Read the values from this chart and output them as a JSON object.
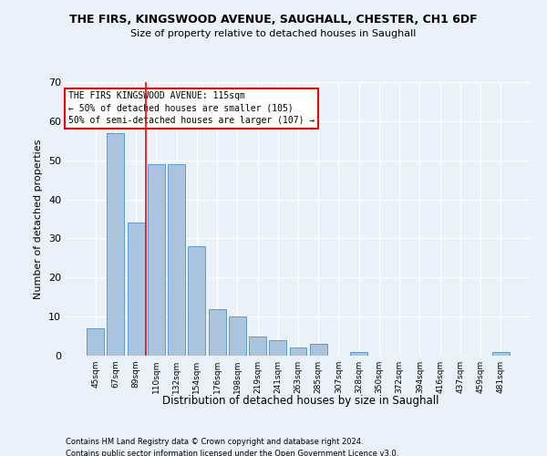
{
  "title1": "THE FIRS, KINGSWOOD AVENUE, SAUGHALL, CHESTER, CH1 6DF",
  "title2": "Size of property relative to detached houses in Saughall",
  "xlabel": "Distribution of detached houses by size in Saughall",
  "ylabel": "Number of detached properties",
  "footnote1": "Contains HM Land Registry data © Crown copyright and database right 2024.",
  "footnote2": "Contains public sector information licensed under the Open Government Licence v3.0.",
  "categories": [
    "45sqm",
    "67sqm",
    "89sqm",
    "110sqm",
    "132sqm",
    "154sqm",
    "176sqm",
    "198sqm",
    "219sqm",
    "241sqm",
    "263sqm",
    "285sqm",
    "307sqm",
    "328sqm",
    "350sqm",
    "372sqm",
    "394sqm",
    "416sqm",
    "437sqm",
    "459sqm",
    "481sqm"
  ],
  "values": [
    7,
    57,
    34,
    49,
    49,
    28,
    12,
    10,
    5,
    4,
    2,
    3,
    0,
    1,
    0,
    0,
    0,
    0,
    0,
    0,
    1
  ],
  "bar_color": "#aac4de",
  "bar_edge_color": "#5b9bd5",
  "background_color": "#eaf1f8",
  "grid_color": "#ffffff",
  "vline_x": 2.5,
  "vline_color": "red",
  "annotation_text": "THE FIRS KINGSWOOD AVENUE: 115sqm\n← 50% of detached houses are smaller (105)\n50% of semi-detached houses are larger (107) →",
  "annotation_box_color": "white",
  "annotation_border_color": "red",
  "ylim": [
    0,
    70
  ],
  "yticks": [
    0,
    10,
    20,
    30,
    40,
    50,
    60,
    70
  ]
}
